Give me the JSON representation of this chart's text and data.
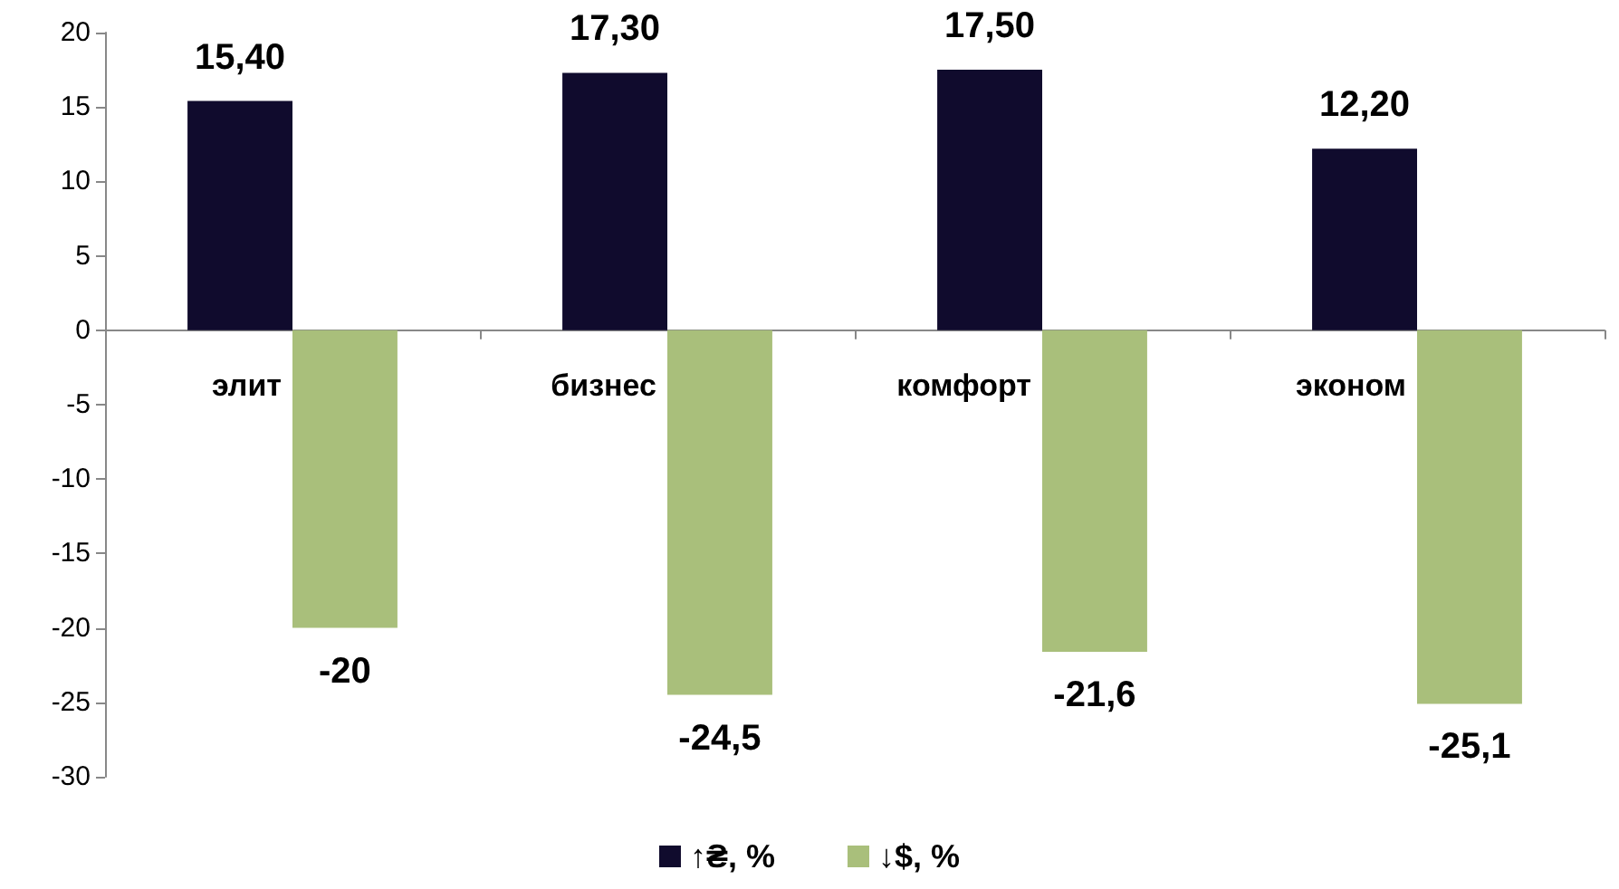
{
  "chart_data": {
    "type": "bar",
    "categories": [
      "элит",
      "бизнес",
      "комфорт",
      "эконом"
    ],
    "series": [
      {
        "name": "↑₴, %",
        "color": "#100b2d",
        "values": [
          15.4,
          17.3,
          17.5,
          12.2
        ],
        "value_labels": [
          "15,40",
          "17,30",
          "17,50",
          "12,20"
        ]
      },
      {
        "name": "↓$, %",
        "color": "#a9bf7b",
        "values": [
          -20,
          -24.5,
          -21.6,
          -25.1
        ],
        "value_labels": [
          "-20",
          "-24,5",
          "-21,6",
          "-25,1"
        ]
      }
    ],
    "ylim": [
      -30,
      20
    ],
    "yticks": [
      -30,
      -25,
      -20,
      -15,
      -10,
      -5,
      0,
      5,
      10,
      15,
      20
    ],
    "grid": false,
    "legend": "bottom"
  }
}
